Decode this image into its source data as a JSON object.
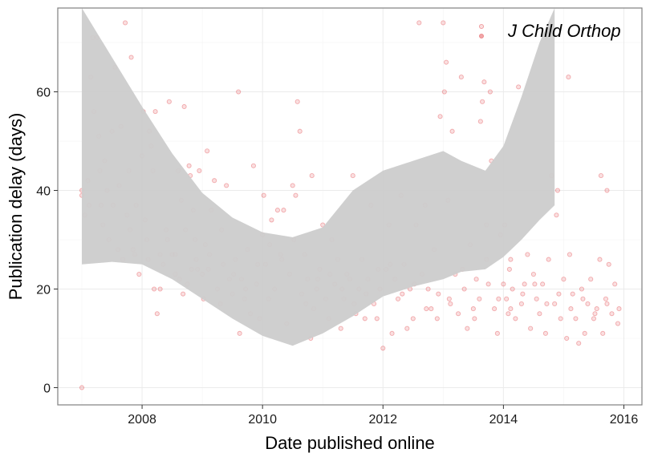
{
  "chart_data": {
    "type": "scatter",
    "xlabel": "Date published online",
    "ylabel": "Publication delay (days)",
    "xlim": [
      2006.6,
      2016.3
    ],
    "ylim": [
      -3.5,
      77
    ],
    "xticks": [
      2008,
      2010,
      2012,
      2014,
      2016
    ],
    "yticks": [
      0,
      20,
      40,
      60
    ],
    "grid": true,
    "legend": {
      "position": "top-right",
      "label": "J Child Orthop"
    },
    "colors": {
      "point": "#e0393e",
      "ribbon": "#cccccc",
      "panel_border": "#808080",
      "grid": "#ebebeb"
    },
    "smooth_band": {
      "x": [
        2007.0,
        2007.5,
        2008.0,
        2008.5,
        2009.0,
        2009.5,
        2010.0,
        2010.5,
        2011.0,
        2011.5,
        2012.0,
        2012.5,
        2013.0,
        2013.3,
        2013.7,
        2014.0,
        2014.3,
        2014.6,
        2014.85
      ],
      "upper": [
        77.0,
        67.0,
        57.0,
        47.5,
        39.5,
        34.5,
        31.5,
        30.5,
        32.5,
        40.0,
        44.0,
        46.0,
        48.0,
        46.0,
        44.0,
        49.0,
        59.0,
        70.0,
        77.0
      ],
      "lower": [
        25.0,
        25.5,
        25.0,
        22.0,
        18.0,
        14.0,
        10.5,
        8.5,
        11.0,
        14.5,
        18.5,
        20.5,
        22.0,
        23.5,
        24.0,
        26.5,
        30.0,
        34.0,
        37.0
      ]
    },
    "points": [
      [
        2007.0,
        0
      ],
      [
        2007.0,
        40
      ],
      [
        2007.0,
        39
      ],
      [
        2007.05,
        35
      ],
      [
        2007.1,
        42
      ],
      [
        2007.12,
        37
      ],
      [
        2007.15,
        63
      ],
      [
        2007.18,
        71
      ],
      [
        2007.2,
        56
      ],
      [
        2007.25,
        71
      ],
      [
        2007.28,
        51
      ],
      [
        2007.3,
        44
      ],
      [
        2007.32,
        37
      ],
      [
        2007.35,
        33
      ],
      [
        2007.38,
        46
      ],
      [
        2007.42,
        40
      ],
      [
        2007.45,
        30
      ],
      [
        2007.5,
        52
      ],
      [
        2007.52,
        37
      ],
      [
        2007.55,
        65
      ],
      [
        2007.6,
        28
      ],
      [
        2007.62,
        41
      ],
      [
        2007.65,
        53
      ],
      [
        2007.68,
        26
      ],
      [
        2007.72,
        74
      ],
      [
        2007.75,
        35
      ],
      [
        2007.78,
        44
      ],
      [
        2007.8,
        32
      ],
      [
        2007.82,
        67
      ],
      [
        2007.85,
        28
      ],
      [
        2007.88,
        27
      ],
      [
        2007.9,
        37
      ],
      [
        2007.95,
        23
      ],
      [
        2008.0,
        47
      ],
      [
        2008.02,
        56
      ],
      [
        2008.05,
        34
      ],
      [
        2008.08,
        30
      ],
      [
        2008.1,
        26
      ],
      [
        2008.12,
        52
      ],
      [
        2008.15,
        49
      ],
      [
        2008.18,
        44
      ],
      [
        2008.2,
        20
      ],
      [
        2008.22,
        56
      ],
      [
        2008.25,
        15
      ],
      [
        2008.3,
        20
      ],
      [
        2008.35,
        25
      ],
      [
        2008.4,
        32
      ],
      [
        2008.45,
        58
      ],
      [
        2008.5,
        27
      ],
      [
        2008.55,
        23
      ],
      [
        2008.6,
        44
      ],
      [
        2008.62,
        22
      ],
      [
        2008.65,
        38
      ],
      [
        2008.7,
        57
      ],
      [
        2008.72,
        32
      ],
      [
        2008.75,
        21
      ],
      [
        2008.78,
        45
      ],
      [
        2008.8,
        43
      ],
      [
        2008.82,
        24
      ],
      [
        2008.85,
        36
      ],
      [
        2008.88,
        30
      ],
      [
        2008.9,
        26
      ],
      [
        2008.95,
        44
      ],
      [
        2009.0,
        23
      ],
      [
        2009.02,
        18
      ],
      [
        2009.05,
        29
      ],
      [
        2009.08,
        48
      ],
      [
        2009.1,
        24
      ],
      [
        2009.15,
        36
      ],
      [
        2009.2,
        42
      ],
      [
        2009.25,
        20
      ],
      [
        2009.3,
        17
      ],
      [
        2009.35,
        25
      ],
      [
        2009.4,
        41
      ],
      [
        2009.45,
        22
      ],
      [
        2009.5,
        19
      ],
      [
        2009.55,
        26
      ],
      [
        2009.6,
        60
      ],
      [
        2009.62,
        11
      ],
      [
        2009.65,
        22
      ],
      [
        2009.7,
        18
      ],
      [
        2009.75,
        28
      ],
      [
        2009.8,
        15
      ],
      [
        2009.85,
        45
      ],
      [
        2009.9,
        21
      ],
      [
        2009.95,
        14
      ],
      [
        2010.0,
        31
      ],
      [
        2010.02,
        39
      ],
      [
        2010.05,
        25
      ],
      [
        2010.1,
        18
      ],
      [
        2010.15,
        34
      ],
      [
        2010.2,
        20
      ],
      [
        2010.25,
        36
      ],
      [
        2010.3,
        27
      ],
      [
        2010.35,
        36
      ],
      [
        2010.4,
        13
      ],
      [
        2010.45,
        23
      ],
      [
        2010.5,
        41
      ],
      [
        2010.55,
        39
      ],
      [
        2010.58,
        58
      ],
      [
        2010.62,
        52
      ],
      [
        2010.65,
        19
      ],
      [
        2010.7,
        27
      ],
      [
        2010.75,
        22
      ],
      [
        2010.8,
        10
      ],
      [
        2010.82,
        43
      ],
      [
        2010.85,
        16
      ],
      [
        2010.9,
        20
      ],
      [
        2010.95,
        24
      ],
      [
        2011.0,
        33
      ],
      [
        2011.05,
        18
      ],
      [
        2011.1,
        14
      ],
      [
        2011.15,
        30
      ],
      [
        2011.2,
        21
      ],
      [
        2011.25,
        26
      ],
      [
        2011.3,
        12
      ],
      [
        2011.35,
        18
      ],
      [
        2011.4,
        23
      ],
      [
        2011.45,
        22
      ],
      [
        2011.5,
        43
      ],
      [
        2011.55,
        15
      ],
      [
        2011.6,
        20
      ],
      [
        2011.65,
        26
      ],
      [
        2011.7,
        14
      ],
      [
        2011.75,
        22
      ],
      [
        2011.8,
        37
      ],
      [
        2011.85,
        17
      ],
      [
        2011.9,
        14
      ],
      [
        2011.95,
        20
      ],
      [
        2012.0,
        8
      ],
      [
        2012.05,
        24
      ],
      [
        2012.1,
        33
      ],
      [
        2012.15,
        11
      ],
      [
        2012.2,
        22
      ],
      [
        2012.25,
        18
      ],
      [
        2012.3,
        39
      ],
      [
        2012.35,
        25
      ],
      [
        2012.4,
        12
      ],
      [
        2012.45,
        20
      ],
      [
        2012.5,
        14
      ],
      [
        2012.55,
        33
      ],
      [
        2012.6,
        74
      ],
      [
        2012.65,
        23
      ],
      [
        2012.7,
        37
      ],
      [
        2012.75,
        20
      ],
      [
        2012.8,
        16
      ],
      [
        2012.85,
        28
      ],
      [
        2012.9,
        14
      ],
      [
        2012.95,
        55
      ],
      [
        2013.0,
        74
      ],
      [
        2013.02,
        60
      ],
      [
        2013.05,
        66
      ],
      [
        2013.08,
        38
      ],
      [
        2013.1,
        18
      ],
      [
        2013.15,
        52
      ],
      [
        2013.2,
        23
      ],
      [
        2013.25,
        15
      ],
      [
        2013.3,
        63
      ],
      [
        2013.35,
        20
      ],
      [
        2013.4,
        12
      ],
      [
        2013.45,
        29
      ],
      [
        2013.5,
        16
      ],
      [
        2013.55,
        22
      ],
      [
        2013.6,
        18
      ],
      [
        2013.62,
        54
      ],
      [
        2013.65,
        58
      ],
      [
        2013.68,
        62
      ],
      [
        2013.72,
        33
      ],
      [
        2013.75,
        21
      ],
      [
        2013.78,
        60
      ],
      [
        2013.8,
        46
      ],
      [
        2013.85,
        16
      ],
      [
        2013.9,
        11
      ],
      [
        2013.95,
        31
      ],
      [
        2014.0,
        21
      ],
      [
        2014.02,
        33
      ],
      [
        2014.05,
        18
      ],
      [
        2014.08,
        15
      ],
      [
        2014.1,
        24
      ],
      [
        2014.12,
        26
      ],
      [
        2014.15,
        20
      ],
      [
        2014.2,
        14
      ],
      [
        2014.25,
        61
      ],
      [
        2014.3,
        17
      ],
      [
        2014.35,
        21
      ],
      [
        2014.4,
        27
      ],
      [
        2014.45,
        12
      ],
      [
        2014.5,
        23
      ],
      [
        2014.55,
        18
      ],
      [
        2014.6,
        15
      ],
      [
        2014.65,
        21
      ],
      [
        2014.7,
        11
      ],
      [
        2014.75,
        26
      ],
      [
        2014.8,
        43
      ],
      [
        2014.85,
        17
      ],
      [
        2014.88,
        35
      ],
      [
        2014.9,
        40
      ],
      [
        2014.95,
        14
      ],
      [
        2015.0,
        22
      ],
      [
        2015.05,
        10
      ],
      [
        2015.08,
        63
      ],
      [
        2015.1,
        27
      ],
      [
        2015.15,
        19
      ],
      [
        2015.2,
        14
      ],
      [
        2015.25,
        9
      ],
      [
        2015.3,
        20
      ],
      [
        2015.35,
        11
      ],
      [
        2015.4,
        17
      ],
      [
        2015.45,
        22
      ],
      [
        2015.5,
        14
      ],
      [
        2015.55,
        16
      ],
      [
        2015.6,
        26
      ],
      [
        2015.62,
        43
      ],
      [
        2015.65,
        11
      ],
      [
        2015.7,
        18
      ],
      [
        2015.72,
        40
      ],
      [
        2015.75,
        25
      ],
      [
        2015.8,
        15
      ],
      [
        2015.85,
        21
      ],
      [
        2015.9,
        13
      ],
      [
        2008.3,
        27
      ],
      [
        2008.42,
        30
      ],
      [
        2008.55,
        27
      ],
      [
        2008.68,
        19
      ],
      [
        2008.92,
        24
      ],
      [
        2009.12,
        27
      ],
      [
        2009.32,
        32
      ],
      [
        2009.52,
        23
      ],
      [
        2009.72,
        20
      ],
      [
        2009.92,
        25
      ],
      [
        2010.12,
        29
      ],
      [
        2010.32,
        26
      ],
      [
        2010.52,
        30
      ],
      [
        2010.72,
        17
      ],
      [
        2010.92,
        22
      ],
      [
        2011.12,
        23
      ],
      [
        2011.32,
        20
      ],
      [
        2011.52,
        17
      ],
      [
        2011.72,
        19
      ],
      [
        2011.92,
        24
      ],
      [
        2012.12,
        25
      ],
      [
        2012.32,
        19
      ],
      [
        2012.52,
        21
      ],
      [
        2012.72,
        16
      ],
      [
        2012.92,
        19
      ],
      [
        2013.12,
        17
      ],
      [
        2013.32,
        24
      ],
      [
        2013.52,
        14
      ],
      [
        2013.72,
        26
      ],
      [
        2013.92,
        18
      ],
      [
        2014.12,
        16
      ],
      [
        2014.32,
        19
      ],
      [
        2014.52,
        21
      ],
      [
        2014.72,
        17
      ],
      [
        2014.92,
        19
      ],
      [
        2015.12,
        16
      ],
      [
        2015.32,
        18
      ],
      [
        2015.52,
        15
      ],
      [
        2015.72,
        17
      ],
      [
        2015.92,
        16
      ]
    ]
  }
}
